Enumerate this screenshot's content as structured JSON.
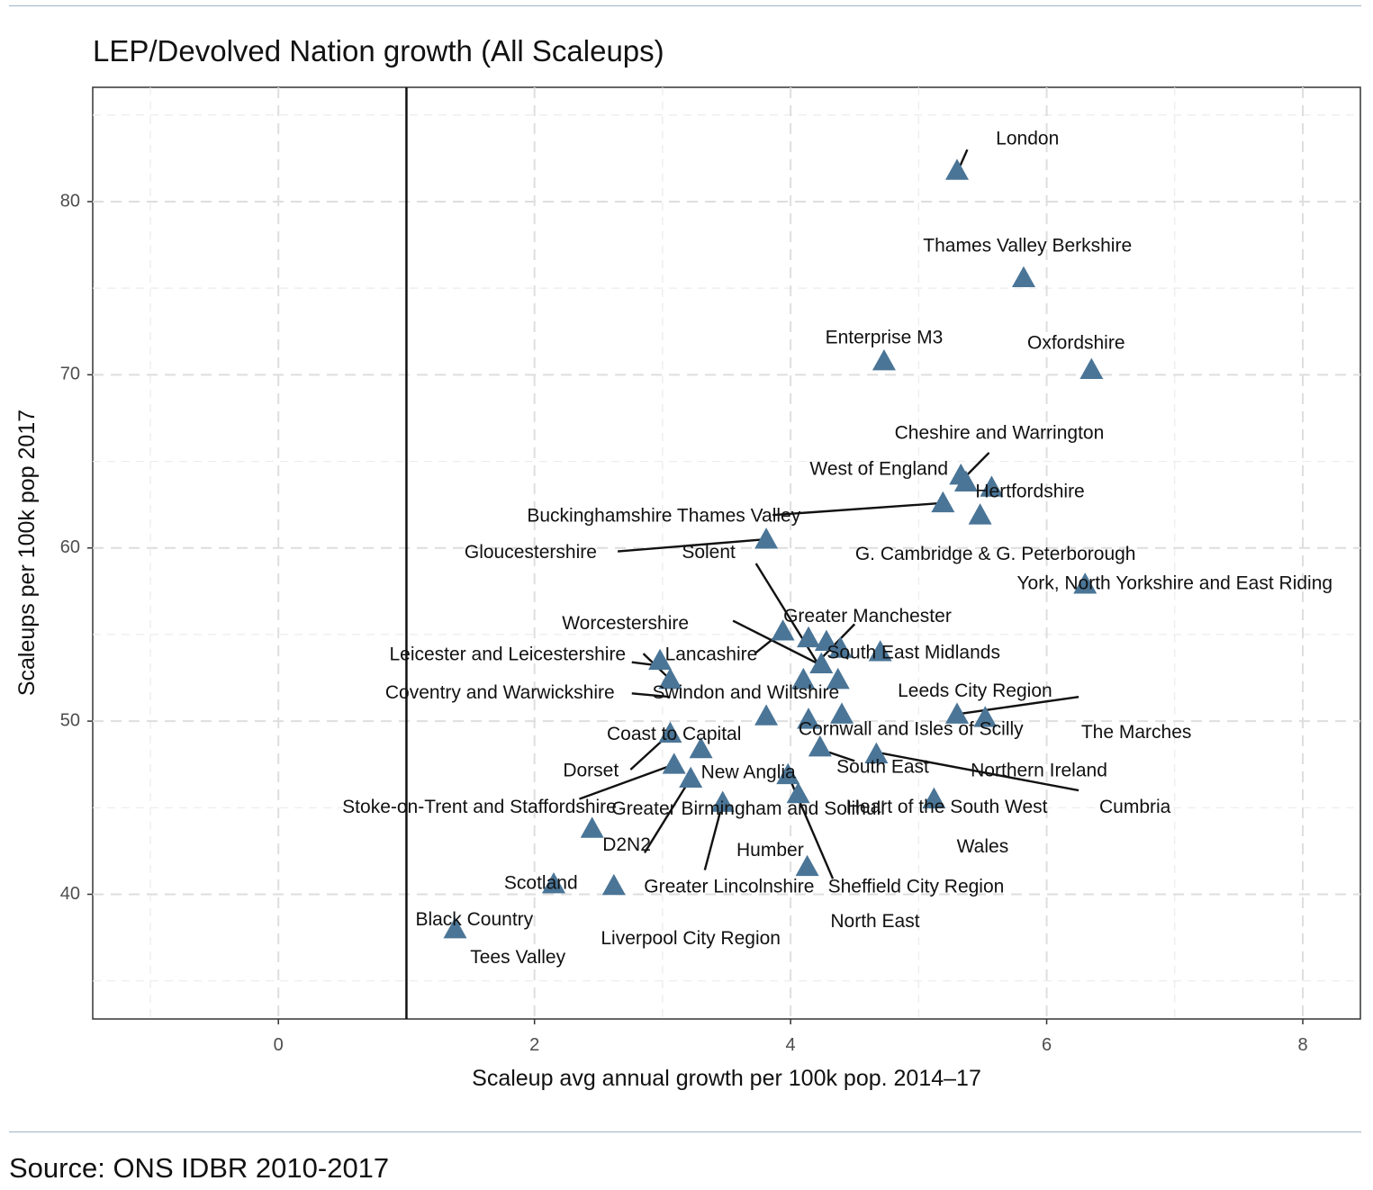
{
  "title": "LEP/Devolved Nation growth (All Scaleups)",
  "source": "Source: ONS IDBR 2010-2017",
  "chart_data": {
    "type": "scatter",
    "title": "LEP/Devolved Nation growth (All Scaleups)",
    "xlabel": "Scaleup avg annual growth per 100k pop. 2014–17",
    "ylabel": "Scaleups per 100k pop 2017",
    "xlim": [
      -1.45,
      8.45
    ],
    "ylim": [
      32.8,
      86.6
    ],
    "xticks": [
      0,
      2,
      4,
      6,
      8
    ],
    "yticks": [
      40,
      50,
      60,
      70,
      80
    ],
    "grid": true,
    "reference_line_x": 1,
    "marker": "triangle",
    "marker_color": "#4a7597",
    "points": [
      {
        "name": "London",
        "x": 5.3,
        "y": 81.8
      },
      {
        "name": "Thames Valley Berkshire",
        "x": 5.82,
        "y": 75.6
      },
      {
        "name": "Enterprise M3",
        "x": 4.73,
        "y": 70.8
      },
      {
        "name": "Oxfordshire",
        "x": 6.35,
        "y": 70.3
      },
      {
        "name": "Cheshire and Warrington",
        "x": 5.33,
        "y": 64.2
      },
      {
        "name": "West of England",
        "x": 5.37,
        "y": 63.8
      },
      {
        "name": "Hertfordshire",
        "x": 5.57,
        "y": 63.5
      },
      {
        "name": "Buckinghamshire Thames Valley",
        "x": 5.19,
        "y": 62.6
      },
      {
        "name": "G. Cambridge & G. Peterborough",
        "x": 5.48,
        "y": 61.9
      },
      {
        "name": "Gloucestershire",
        "x": 3.81,
        "y": 60.5
      },
      {
        "name": "York, North Yorkshire and East Riding",
        "x": 6.3,
        "y": 57.9
      },
      {
        "name": "Worcestershire",
        "x": 3.94,
        "y": 55.2
      },
      {
        "name": "Greater Manchester",
        "x": 4.14,
        "y": 54.8
      },
      {
        "name": "Solent",
        "x": 4.28,
        "y": 54.6
      },
      {
        "name": "South East Midlands",
        "x": 4.39,
        "y": 54.2
      },
      {
        "name": "Leeds City Region",
        "x": 4.7,
        "y": 54.0
      },
      {
        "name": "Leicester and Leicestershire",
        "x": 2.98,
        "y": 53.5
      },
      {
        "name": "Lancashire",
        "x": 4.24,
        "y": 53.3
      },
      {
        "name": "Coventry and Warwickshire",
        "x": 3.06,
        "y": 52.4
      },
      {
        "name": "Swindon and Wiltshire",
        "x": 4.1,
        "y": 52.4
      },
      {
        "name": "Greater Birmingham and Solihull",
        "x": 4.37,
        "y": 52.4
      },
      {
        "name": "Coast to Capital",
        "x": 3.81,
        "y": 50.3
      },
      {
        "name": "Cornwall and Isles of Scilly",
        "x": 4.14,
        "y": 50.1
      },
      {
        "name": "Heart of the South West",
        "x": 4.4,
        "y": 50.4
      },
      {
        "name": "Northern Ireland",
        "x": 5.3,
        "y": 50.4
      },
      {
        "name": "The Marches",
        "x": 5.52,
        "y": 50.2
      },
      {
        "name": "Dorset",
        "x": 3.06,
        "y": 49.3
      },
      {
        "name": "New Anglia",
        "x": 3.3,
        "y": 48.4
      },
      {
        "name": "South East",
        "x": 4.23,
        "y": 48.5
      },
      {
        "name": "Cumbria",
        "x": 4.67,
        "y": 48.1
      },
      {
        "name": "Stoke-on-Trent and Staffordshire",
        "x": 3.09,
        "y": 47.5
      },
      {
        "name": "Greater Lincolnshire",
        "x": 3.22,
        "y": 46.7
      },
      {
        "name": "Sheffield City Region",
        "x": 3.98,
        "y": 46.9
      },
      {
        "name": "North East",
        "x": 4.06,
        "y": 45.8
      },
      {
        "name": "Wales",
        "x": 5.12,
        "y": 45.5
      },
      {
        "name": "Humber",
        "x": 3.47,
        "y": 45.3
      },
      {
        "name": "D2N2",
        "x": 2.45,
        "y": 43.8
      },
      {
        "name": "Scotland",
        "x": 4.13,
        "y": 41.6
      },
      {
        "name": "Black Country",
        "x": 2.15,
        "y": 40.6
      },
      {
        "name": "Liverpool City Region",
        "x": 2.62,
        "y": 40.5
      },
      {
        "name": "Tees Valley",
        "x": 1.38,
        "y": 38.0
      }
    ],
    "labels": [
      {
        "text": "London",
        "x": 5.85,
        "y": 83.6,
        "anchor": "middle"
      },
      {
        "text": "Thames Valley Berkshire",
        "x": 5.85,
        "y": 77.4,
        "anchor": "middle"
      },
      {
        "text": "Enterprise M3",
        "x": 4.73,
        "y": 72.1,
        "anchor": "middle"
      },
      {
        "text": "Oxfordshire",
        "x": 6.23,
        "y": 71.8,
        "anchor": "middle"
      },
      {
        "text": "Cheshire and Warrington",
        "x": 5.63,
        "y": 66.6,
        "anchor": "middle"
      },
      {
        "text": "West of England",
        "x": 4.69,
        "y": 64.5,
        "anchor": "middle"
      },
      {
        "text": "Hertfordshire",
        "x": 5.87,
        "y": 63.2,
        "anchor": "middle"
      },
      {
        "text": "Buckinghamshire Thames Valley",
        "x": 3.01,
        "y": 61.8,
        "anchor": "middle"
      },
      {
        "text": "G. Cambridge & G. Peterborough",
        "x": 5.6,
        "y": 59.6,
        "anchor": "middle"
      },
      {
        "text": "Gloucestershire",
        "x": 1.97,
        "y": 59.7,
        "anchor": "middle"
      },
      {
        "text": "Solent",
        "x": 3.36,
        "y": 59.7,
        "anchor": "middle"
      },
      {
        "text": "York, North Yorkshire and East Riding",
        "x": 7.0,
        "y": 57.9,
        "anchor": "middle"
      },
      {
        "text": "Worcestershire",
        "x": 2.71,
        "y": 55.6,
        "anchor": "middle"
      },
      {
        "text": "Greater Manchester",
        "x": 4.6,
        "y": 56.0,
        "anchor": "middle"
      },
      {
        "text": "South East Midlands",
        "x": 4.96,
        "y": 53.9,
        "anchor": "middle"
      },
      {
        "text": "Leicester and Leicestershire",
        "x": 1.79,
        "y": 53.8,
        "anchor": "middle"
      },
      {
        "text": "Lancashire",
        "x": 3.38,
        "y": 53.8,
        "anchor": "middle"
      },
      {
        "text": "Leeds City Region",
        "x": 5.44,
        "y": 51.7,
        "anchor": "middle"
      },
      {
        "text": "Coventry and Warwickshire",
        "x": 1.73,
        "y": 51.6,
        "anchor": "middle"
      },
      {
        "text": "Swindon and Wiltshire",
        "x": 3.65,
        "y": 51.6,
        "anchor": "middle"
      },
      {
        "text": "Coast to Capital",
        "x": 3.09,
        "y": 49.2,
        "anchor": "middle"
      },
      {
        "text": "Cornwall and Isles of Scilly",
        "x": 4.94,
        "y": 49.5,
        "anchor": "middle"
      },
      {
        "text": "The Marches",
        "x": 6.7,
        "y": 49.3,
        "anchor": "middle"
      },
      {
        "text": "Dorset",
        "x": 2.44,
        "y": 47.1,
        "anchor": "middle"
      },
      {
        "text": "New Anglia",
        "x": 3.67,
        "y": 47.0,
        "anchor": "middle"
      },
      {
        "text": "South East",
        "x": 4.72,
        "y": 47.3,
        "anchor": "middle"
      },
      {
        "text": "Northern Ireland",
        "x": 5.94,
        "y": 47.1,
        "anchor": "middle"
      },
      {
        "text": "Stoke-on-Trent and Staffordshire",
        "x": 1.57,
        "y": 45.0,
        "anchor": "middle"
      },
      {
        "text": "Greater Birmingham and Solihull",
        "x": 3.67,
        "y": 44.9,
        "anchor": "middle"
      },
      {
        "text": "Heart of the South West",
        "x": 5.22,
        "y": 45.0,
        "anchor": "middle"
      },
      {
        "text": "Cumbria",
        "x": 6.69,
        "y": 45.0,
        "anchor": "middle"
      },
      {
        "text": "D2N2",
        "x": 2.72,
        "y": 42.8,
        "anchor": "middle"
      },
      {
        "text": "Humber",
        "x": 3.84,
        "y": 42.5,
        "anchor": "middle"
      },
      {
        "text": "Wales",
        "x": 5.5,
        "y": 42.7,
        "anchor": "middle"
      },
      {
        "text": "Scotland",
        "x": 2.05,
        "y": 40.6,
        "anchor": "middle"
      },
      {
        "text": "Greater Lincolnshire",
        "x": 3.52,
        "y": 40.4,
        "anchor": "middle"
      },
      {
        "text": "Sheffield City Region",
        "x": 4.98,
        "y": 40.4,
        "anchor": "middle"
      },
      {
        "text": "Black Country",
        "x": 1.53,
        "y": 38.5,
        "anchor": "middle"
      },
      {
        "text": "North East",
        "x": 4.66,
        "y": 38.4,
        "anchor": "middle"
      },
      {
        "text": "Liverpool City Region",
        "x": 3.22,
        "y": 37.4,
        "anchor": "middle"
      },
      {
        "text": "Tees Valley",
        "x": 1.87,
        "y": 36.3,
        "anchor": "middle"
      }
    ],
    "leader_lines": [
      {
        "x1": 5.32,
        "y1": 82.0,
        "x2": 5.38,
        "y2": 83.0
      },
      {
        "x1": 5.35,
        "y1": 64.0,
        "x2": 5.55,
        "y2": 65.5
      },
      {
        "x1": 3.86,
        "y1": 61.9,
        "x2": 5.2,
        "y2": 62.6
      },
      {
        "x1": 2.65,
        "y1": 59.8,
        "x2": 3.81,
        "y2": 60.5
      },
      {
        "x1": 3.73,
        "y1": 59.1,
        "x2": 4.24,
        "y2": 53.0
      },
      {
        "x1": 3.55,
        "y1": 55.8,
        "x2": 4.3,
        "y2": 53.0
      },
      {
        "x1": 4.5,
        "y1": 55.6,
        "x2": 4.25,
        "y2": 53.7
      },
      {
        "x1": 4.45,
        "y1": 53.6,
        "x2": 4.34,
        "y2": 54.2
      },
      {
        "x1": 3.72,
        "y1": 53.9,
        "x2": 3.94,
        "y2": 55.2
      },
      {
        "x1": 2.85,
        "y1": 53.9,
        "x2": 3.06,
        "y2": 52.4
      },
      {
        "x1": 2.76,
        "y1": 53.4,
        "x2": 2.98,
        "y2": 53.2
      },
      {
        "x1": 2.76,
        "y1": 51.6,
        "x2": 3.06,
        "y2": 51.4
      },
      {
        "x1": 5.3,
        "y1": 50.4,
        "x2": 6.25,
        "y2": 51.4
      },
      {
        "x1": 2.75,
        "y1": 47.2,
        "x2": 3.06,
        "y2": 49.3
      },
      {
        "x1": 3.34,
        "y1": 47.9,
        "x2": 3.3,
        "y2": 48.4
      },
      {
        "x1": 4.3,
        "y1": 48.2,
        "x2": 4.5,
        "y2": 47.7
      },
      {
        "x1": 4.67,
        "y1": 48.2,
        "x2": 6.25,
        "y2": 46.0
      },
      {
        "x1": 2.35,
        "y1": 45.5,
        "x2": 3.09,
        "y2": 47.5
      },
      {
        "x1": 2.86,
        "y1": 42.4,
        "x2": 3.22,
        "y2": 46.7
      },
      {
        "x1": 3.33,
        "y1": 41.4,
        "x2": 3.47,
        "y2": 45.3
      },
      {
        "x1": 4.33,
        "y1": 40.9,
        "x2": 3.98,
        "y2": 46.9
      },
      {
        "x1": 2.13,
        "y1": 40.7,
        "x2": 2.15,
        "y2": 40.6
      }
    ]
  }
}
